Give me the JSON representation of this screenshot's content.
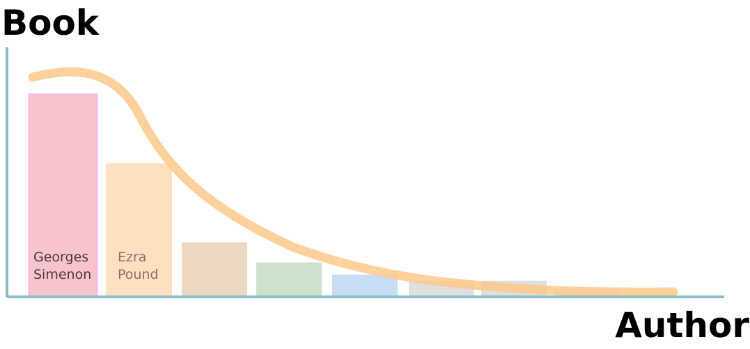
{
  "chart_data": {
    "type": "bar",
    "ylabel": "Book",
    "xlabel": "Author",
    "categories": [
      "Georges Simenon",
      "Ezra Pound",
      "",
      "",
      "",
      "",
      "",
      ""
    ],
    "bar_text": [
      [
        "Georges",
        "Simenon"
      ],
      [
        "Ezra",
        "Pound"
      ],
      [],
      [],
      [],
      [],
      [],
      []
    ],
    "values": [
      100,
      66,
      27,
      17,
      11,
      8,
      8,
      4
    ],
    "ylim": [
      0,
      100
    ],
    "grid": false,
    "legend": "none",
    "trend_line": {
      "type": "decay-curve",
      "color": "#fdc98a"
    },
    "colors": {
      "axis": "#8bbcc4",
      "bars": [
        "#f8c4cb",
        "#fde0c0",
        "#ecd7c3",
        "#cde1cd",
        "#c9dcf6",
        "#dfdfdf",
        "#dfdfdf",
        "#e4e4e4"
      ],
      "bar_outline_first": "#f6b8e6",
      "label_text": [
        "#4d3a3a",
        "#8a7160"
      ]
    }
  }
}
